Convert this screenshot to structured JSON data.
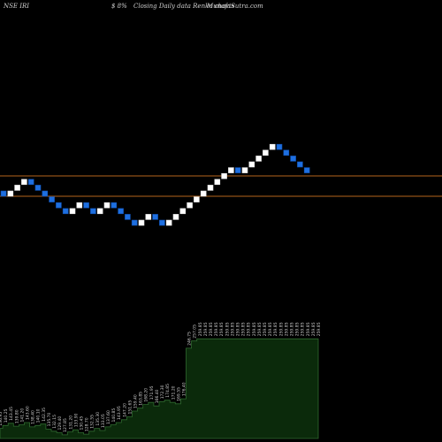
{
  "header": {
    "symbol": "NSE IRI",
    "change": "$ 8%",
    "description": "Closing Daily data Renko charts",
    "brand": "MunafaSutra.com"
  },
  "colors": {
    "background": "#000000",
    "up_brick": "#ffffff",
    "down_brick": "#1e6fe0",
    "support_line": "#b5651d",
    "volume_fill": "#0b2a0b",
    "volume_outline": "#2f6a2f",
    "label_text": "#cfcfcf"
  },
  "chart_data": [
    {
      "type": "renko",
      "bricks": [
        "down",
        "up",
        "up",
        "up",
        "down",
        "down",
        "down",
        "down",
        "down",
        "down",
        "up",
        "up",
        "down",
        "down",
        "up",
        "up",
        "down",
        "down",
        "down",
        "down",
        "up",
        "up",
        "down",
        "down",
        "up",
        "up",
        "up",
        "up",
        "up",
        "up",
        "up",
        "up",
        "up",
        "up",
        "down",
        "up",
        "up",
        "up",
        "up",
        "up",
        "down",
        "down",
        "down",
        "down",
        "down"
      ],
      "reference_lines": [
        "upper",
        "lower"
      ]
    },
    {
      "type": "area",
      "series": [
        {
          "values": [
            134,
            138,
            141,
            137,
            139,
            142,
            136,
            138,
            140,
            133,
            130,
            128,
            125,
            129,
            132,
            128,
            126,
            130,
            134,
            131,
            136,
            139,
            142,
            146,
            150,
            158,
            162,
            167,
            170,
            165,
            171,
            173,
            170,
            168,
            175,
            245,
            255,
            258,
            258,
            258,
            258,
            258,
            258,
            258,
            258,
            258,
            258,
            258,
            258,
            258,
            258,
            258,
            258,
            258,
            258,
            258,
            258,
            258,
            258,
            258
          ]
        }
      ],
      "data_labels": [
        "136.95",
        "140.25",
        "143.45",
        "139.80",
        "141.20",
        "143.60",
        "138.40",
        "140.10",
        "142.35",
        "135.70",
        "132.15",
        "129.40",
        "127.85",
        "131.20",
        "133.90",
        "130.45",
        "128.70",
        "132.55",
        "135.30",
        "133.05",
        "137.60",
        "140.85",
        "143.95",
        "147.20",
        "151.65",
        "159.40",
        "163.85",
        "168.20",
        "171.95",
        "166.40",
        "172.30",
        "174.85",
        "171.20",
        "169.55",
        "176.40",
        "246.75",
        "257.05",
        "259.85",
        "259.85",
        "259.85",
        "259.85",
        "259.85",
        "259.85",
        "259.85",
        "259.85",
        "259.85",
        "259.85",
        "259.85",
        "259.85",
        "259.85",
        "259.85",
        "259.85",
        "259.85",
        "259.85",
        "259.85",
        "259.85",
        "259.85",
        "259.85",
        "259.85",
        "259.85"
      ]
    }
  ]
}
